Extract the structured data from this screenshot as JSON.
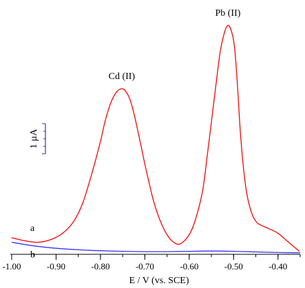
{
  "chart_data": {
    "type": "line",
    "title": "",
    "xlabel": "E / V (vs. SCE)",
    "ylabel": "",
    "xlim": [
      -1.0,
      -0.35
    ],
    "xticks": [
      -1.0,
      -0.9,
      -0.8,
      -0.7,
      -0.6,
      -0.5,
      -0.4
    ],
    "xtick_labels": [
      "-1.00",
      "-0.90",
      "-0.80",
      "-0.70",
      "-0.60",
      "-0.50",
      "-0.40"
    ],
    "y_unit": "µA",
    "ylim": [
      -0.3,
      7.6
    ],
    "grid": false,
    "legend": "none",
    "scale_bar": {
      "label": "1 µA",
      "value": 1
    },
    "series": [
      {
        "name": "a",
        "color": "#ff0000",
        "x": [
          -1.0,
          -0.97,
          -0.94,
          -0.91,
          -0.885,
          -0.86,
          -0.84,
          -0.82,
          -0.8,
          -0.79,
          -0.78,
          -0.77,
          -0.76,
          -0.752,
          -0.745,
          -0.735,
          -0.725,
          -0.71,
          -0.7,
          -0.69,
          -0.68,
          -0.665,
          -0.65,
          -0.635,
          -0.62,
          -0.6,
          -0.585,
          -0.57,
          -0.56,
          -0.55,
          -0.54,
          -0.53,
          -0.52,
          -0.513,
          -0.507,
          -0.5,
          -0.495,
          -0.49,
          -0.485,
          -0.478,
          -0.47,
          -0.46,
          -0.45,
          -0.44,
          -0.42,
          -0.4,
          -0.38,
          -0.36,
          -0.352
        ],
        "y": [
          0.25,
          0.15,
          0.1,
          0.2,
          0.4,
          0.8,
          1.4,
          2.35,
          3.45,
          4.1,
          4.6,
          4.95,
          5.15,
          5.2,
          5.15,
          4.9,
          4.4,
          3.4,
          2.7,
          2.05,
          1.45,
          0.8,
          0.35,
          0.1,
          0.05,
          0.35,
          0.9,
          1.8,
          2.9,
          4.1,
          5.3,
          6.45,
          7.1,
          7.3,
          7.2,
          6.8,
          6.1,
          5.0,
          3.8,
          2.6,
          1.7,
          1.1,
          0.8,
          0.68,
          0.55,
          0.4,
          0.15,
          -0.1,
          -0.2
        ]
      },
      {
        "name": "b",
        "color": "#3333ff",
        "x": [
          -1.0,
          -0.95,
          -0.9,
          -0.85,
          -0.8,
          -0.75,
          -0.7,
          -0.65,
          -0.6,
          -0.55,
          -0.5,
          -0.45,
          -0.4,
          -0.35
        ],
        "y": [
          0.1,
          -0.02,
          -0.1,
          -0.15,
          -0.18,
          -0.2,
          -0.21,
          -0.21,
          -0.2,
          -0.19,
          -0.2,
          -0.22,
          -0.24,
          -0.25
        ]
      }
    ],
    "annotations": [
      {
        "text": "Cd (II)",
        "x": -0.752,
        "y": 5.2
      },
      {
        "text": "Pb (II)",
        "x": -0.513,
        "y": 7.3
      }
    ]
  }
}
